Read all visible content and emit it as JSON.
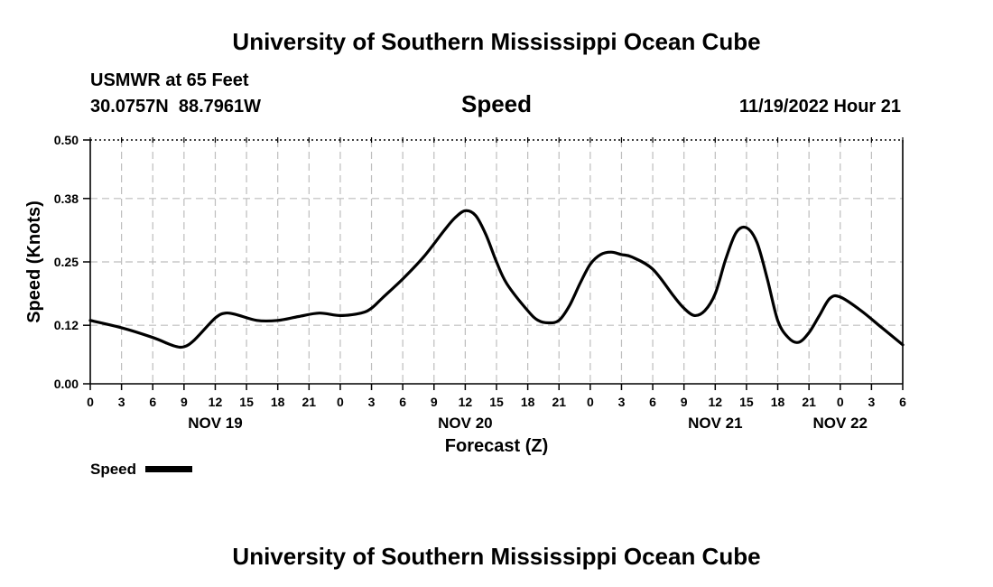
{
  "header": {
    "title": "University of Southern Mississippi Ocean Cube",
    "station_line": "USMWR at 65 Feet",
    "coords_line": "30.0757N  88.7961W",
    "variable": "Speed",
    "timestamp": "11/19/2022 Hour 21"
  },
  "footer": {
    "title": "University of Southern Mississippi Ocean Cube"
  },
  "legend": {
    "label": "Speed"
  },
  "chart_data": {
    "type": "line",
    "title": "Speed",
    "xlabel": "Forecast (Z)",
    "ylabel": "Speed (Knots)",
    "x_unit": "hours since 0Z Nov 19",
    "xlim": [
      0,
      78
    ],
    "ylim": [
      0,
      0.5
    ],
    "yticks": [
      0.0,
      0.12,
      0.25,
      0.38,
      0.5
    ],
    "ytick_labels": [
      "0.00",
      "0.12",
      "0.25",
      "0.38",
      "0.50"
    ],
    "xtick_step_hours": 3,
    "xtick_labels": [
      "0",
      "3",
      "6",
      "9",
      "12",
      "15",
      "18",
      "21",
      "0",
      "3",
      "6",
      "9",
      "12",
      "15",
      "18",
      "21",
      "0",
      "3",
      "6",
      "9",
      "12",
      "15",
      "18",
      "21",
      "0",
      "3",
      "6"
    ],
    "date_labels": [
      {
        "hour": 12,
        "label": "NOV 19"
      },
      {
        "hour": 36,
        "label": "NOV 20"
      },
      {
        "hour": 60,
        "label": "NOV 21"
      },
      {
        "hour": 72,
        "label": "NOV 22"
      }
    ],
    "grid": true,
    "legend_position": "bottom-left",
    "series": [
      {
        "name": "Speed",
        "color": "#000000",
        "x": [
          0,
          3,
          6,
          8,
          9,
          10,
          12,
          13,
          14,
          16,
          18,
          20,
          22,
          24,
          26,
          27,
          28,
          30,
          32,
          34,
          35,
          36,
          37,
          38,
          39,
          40,
          42,
          43,
          44,
          45,
          46,
          47,
          48,
          49,
          50,
          51,
          52,
          54,
          56,
          57,
          58,
          59,
          60,
          61,
          62,
          63,
          64,
          65,
          66,
          67,
          68,
          69,
          70,
          71,
          72,
          74,
          76,
          78
        ],
        "y": [
          0.13,
          0.115,
          0.095,
          0.078,
          0.076,
          0.09,
          0.135,
          0.145,
          0.142,
          0.13,
          0.13,
          0.138,
          0.145,
          0.14,
          0.145,
          0.155,
          0.175,
          0.215,
          0.26,
          0.315,
          0.34,
          0.355,
          0.345,
          0.305,
          0.25,
          0.205,
          0.15,
          0.13,
          0.125,
          0.13,
          0.16,
          0.205,
          0.245,
          0.265,
          0.27,
          0.265,
          0.26,
          0.235,
          0.18,
          0.155,
          0.14,
          0.15,
          0.185,
          0.255,
          0.31,
          0.32,
          0.29,
          0.215,
          0.13,
          0.095,
          0.085,
          0.105,
          0.14,
          0.175,
          0.178,
          0.15,
          0.115,
          0.08
        ]
      }
    ]
  }
}
